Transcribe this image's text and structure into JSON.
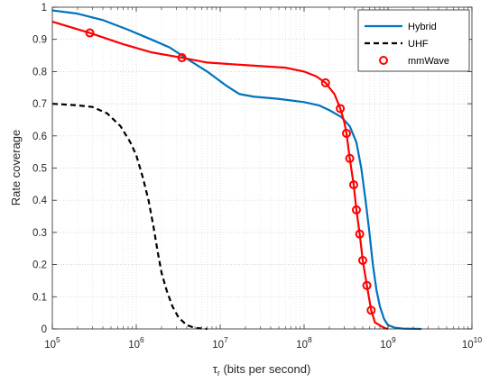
{
  "chart_data": {
    "type": "line",
    "x_scale": "log",
    "xlim": [
      100000,
      10000000000
    ],
    "ylim": [
      0,
      1
    ],
    "grid": true,
    "legend_position": "top-right",
    "xlabel": {
      "main": "τ",
      "sub": "r",
      "rest": " (bits per second)"
    },
    "ylabel": "Rate coverage",
    "x_ticks": [
      {
        "base": "10",
        "exp": "5"
      },
      {
        "base": "10",
        "exp": "6"
      },
      {
        "base": "10",
        "exp": "7"
      },
      {
        "base": "10",
        "exp": "8"
      },
      {
        "base": "10",
        "exp": "9"
      },
      {
        "base": "10",
        "exp": "10"
      }
    ],
    "y_ticks": [
      "0",
      "0.1",
      "0.2",
      "0.3",
      "0.4",
      "0.5",
      "0.6",
      "0.7",
      "0.8",
      "0.9",
      "1"
    ],
    "series": [
      {
        "name": "Hybrid",
        "color": "#0072BD",
        "style": "solid",
        "marker": "none",
        "points": [
          [
            100000,
            0.99
          ],
          [
            200000,
            0.98
          ],
          [
            400000,
            0.96
          ],
          [
            800000,
            0.93
          ],
          [
            1500000,
            0.9
          ],
          [
            2500000,
            0.875
          ],
          [
            4000000,
            0.84
          ],
          [
            7000000,
            0.8
          ],
          [
            12000000,
            0.755
          ],
          [
            17000000,
            0.73
          ],
          [
            25000000,
            0.722
          ],
          [
            50000000,
            0.715
          ],
          [
            100000000,
            0.705
          ],
          [
            150000000,
            0.695
          ],
          [
            200000000,
            0.68
          ],
          [
            280000000,
            0.658
          ],
          [
            350000000,
            0.63
          ],
          [
            420000000,
            0.58
          ],
          [
            480000000,
            0.5
          ],
          [
            540000000,
            0.4
          ],
          [
            600000000,
            0.3
          ],
          [
            660000000,
            0.2
          ],
          [
            730000000,
            0.12
          ],
          [
            800000000,
            0.07
          ],
          [
            900000000,
            0.03
          ],
          [
            1000000000,
            0.012
          ],
          [
            1200000000,
            0.004
          ],
          [
            1500000000,
            0.001
          ],
          [
            2500000000,
            0
          ]
        ]
      },
      {
        "name": "UHF",
        "color": "#000000",
        "style": "dashed",
        "marker": "none",
        "points": [
          [
            100000,
            0.7
          ],
          [
            200000,
            0.695
          ],
          [
            300000,
            0.69
          ],
          [
            450000,
            0.67
          ],
          [
            650000,
            0.63
          ],
          [
            850000,
            0.58
          ],
          [
            1000000,
            0.54
          ],
          [
            1200000,
            0.47
          ],
          [
            1400000,
            0.4
          ],
          [
            1600000,
            0.32
          ],
          [
            1800000,
            0.24
          ],
          [
            2000000,
            0.175
          ],
          [
            2300000,
            0.12
          ],
          [
            2700000,
            0.07
          ],
          [
            3200000,
            0.035
          ],
          [
            4000000,
            0.012
          ],
          [
            5000000,
            0.003
          ],
          [
            7000000,
            0
          ]
        ]
      },
      {
        "name": "mmWave",
        "color": "#FF0000",
        "style": "solid",
        "marker": "circle",
        "points": [
          [
            100000,
            0.955
          ],
          [
            280000,
            0.92
          ],
          [
            700000,
            0.885
          ],
          [
            1500000,
            0.86
          ],
          [
            3500000,
            0.843
          ],
          [
            7000000,
            0.828
          ],
          [
            20000000,
            0.82
          ],
          [
            60000000,
            0.812
          ],
          [
            100000000,
            0.8
          ],
          [
            140000000,
            0.785
          ],
          [
            180000000,
            0.765
          ],
          [
            230000000,
            0.73
          ],
          [
            270000000,
            0.685
          ],
          [
            300000000,
            0.645
          ],
          [
            320000000,
            0.608
          ],
          [
            350000000,
            0.53
          ],
          [
            390000000,
            0.448
          ],
          [
            420000000,
            0.37
          ],
          [
            460000000,
            0.295
          ],
          [
            500000000,
            0.213
          ],
          [
            560000000,
            0.135
          ],
          [
            630000000,
            0.058
          ],
          [
            700000000,
            0.02
          ],
          [
            900000000,
            0.003
          ],
          [
            1000000000,
            0
          ]
        ],
        "marker_points": [
          [
            280000,
            0.92
          ],
          [
            3500000,
            0.843
          ],
          [
            180000000,
            0.765
          ],
          [
            270000000,
            0.685
          ],
          [
            320000000,
            0.608
          ],
          [
            350000000,
            0.53
          ],
          [
            390000000,
            0.448
          ],
          [
            420000000,
            0.37
          ],
          [
            460000000,
            0.295
          ],
          [
            500000000,
            0.213
          ],
          [
            560000000,
            0.135
          ],
          [
            630000000,
            0.058
          ]
        ]
      }
    ]
  }
}
